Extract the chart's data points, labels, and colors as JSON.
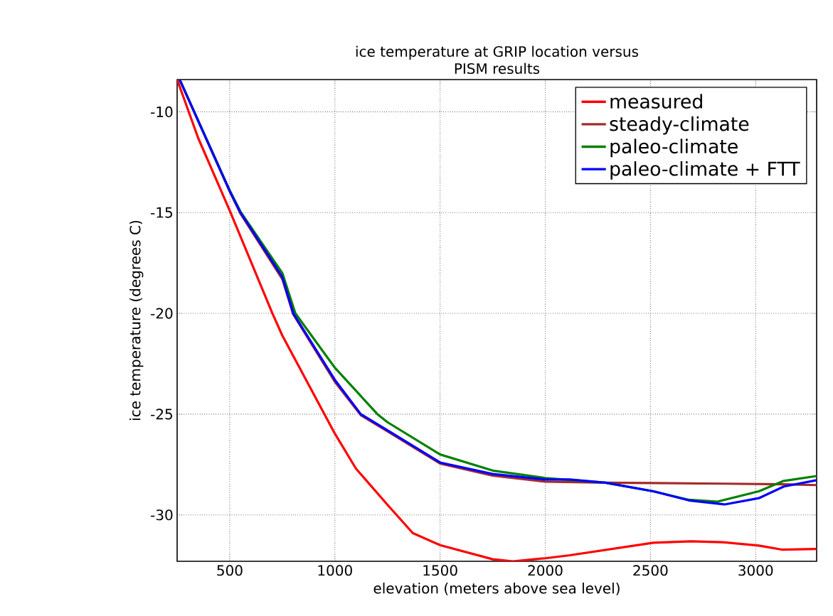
{
  "chart_data": {
    "type": "line",
    "title": "ice temperature at GRIP location versus\nPISM results",
    "xlabel": "elevation (meters above sea level)",
    "ylabel": "ice temperature (degrees C)",
    "xlim": [
      250,
      3290
    ],
    "ylim": [
      -32.3,
      -8.4
    ],
    "xticks": [
      500,
      1000,
      1500,
      2000,
      2500,
      3000
    ],
    "yticks": [
      -10,
      -15,
      -20,
      -25,
      -30
    ],
    "grid": true,
    "legend": "top right",
    "line_style": "solid",
    "series": [
      {
        "name": "measured",
        "color": "#ff0000",
        "x": [
          250,
          350,
          500,
          703,
          750,
          1000,
          1100,
          1250,
          1370,
          1500,
          1750,
          1846,
          2000,
          2117,
          2514,
          2693,
          2839,
          3015,
          3124,
          3290
        ],
        "values": [
          -8.4,
          -11.3,
          -14.9,
          -20.0,
          -21.1,
          -25.97,
          -27.7,
          -29.5,
          -30.9,
          -31.5,
          -32.2,
          -32.3,
          -32.15,
          -32.0,
          -31.38,
          -31.31,
          -31.35,
          -31.52,
          -31.72,
          -31.69
        ]
      },
      {
        "name": "steady-climate",
        "color": "#a52a2a",
        "x": [
          262,
          500,
          551,
          750,
          802,
          1000,
          1123,
          1250,
          1500,
          1750,
          2000,
          2286,
          2514,
          2853,
          3134,
          3290
        ],
        "values": [
          -8.4,
          -13.95,
          -15.05,
          -18.3,
          -20.05,
          -23.4,
          -25.05,
          -25.85,
          -27.45,
          -28.05,
          -28.35,
          -28.4,
          -28.42,
          -28.45,
          -28.48,
          -28.52
        ]
      },
      {
        "name": "paleo-climate",
        "color": "#008000",
        "x": [
          262,
          500,
          551,
          750,
          812,
          1000,
          1202,
          1250,
          1500,
          1750,
          2000,
          2286,
          2514,
          2683,
          2819,
          3015,
          3134,
          3290
        ],
        "values": [
          -8.4,
          -13.9,
          -14.95,
          -18.0,
          -20.0,
          -22.7,
          -25.0,
          -25.4,
          -27.0,
          -27.8,
          -28.17,
          -28.4,
          -28.83,
          -29.25,
          -29.34,
          -28.83,
          -28.31,
          -28.07
        ]
      },
      {
        "name": "paleo-climate + FTT",
        "color": "#0000ff",
        "x": [
          262,
          500,
          551,
          750,
          802,
          1000,
          1123,
          1250,
          1500,
          1750,
          2000,
          2117,
          2286,
          2514,
          2683,
          2853,
          3015,
          3134,
          3290
        ],
        "values": [
          -8.4,
          -13.93,
          -15.0,
          -18.2,
          -20.0,
          -23.3,
          -25.0,
          -25.8,
          -27.4,
          -27.97,
          -28.24,
          -28.24,
          -28.4,
          -28.83,
          -29.28,
          -29.48,
          -29.17,
          -28.59,
          -28.28
        ]
      }
    ]
  }
}
